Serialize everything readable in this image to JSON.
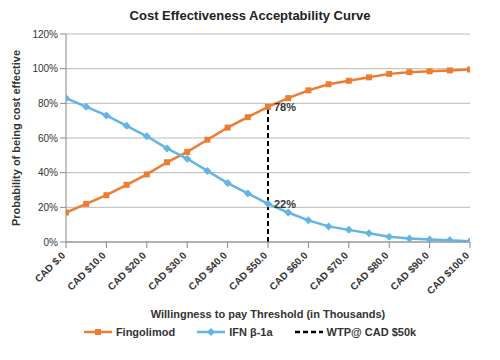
{
  "chart_data": {
    "type": "line",
    "title": "Cost Effectiveness Acceptability Curve",
    "x_label": "Willingness to pay Threshold (in Thousands)",
    "y_label": "Probability of being cost effective",
    "x": [
      0,
      5,
      10,
      15,
      20,
      25,
      30,
      35,
      40,
      45,
      50,
      55,
      60,
      65,
      70,
      75,
      80,
      85,
      90,
      95,
      100
    ],
    "xlim": [
      0,
      100
    ],
    "xticks": [
      {
        "value": 0,
        "label": "CAD $.0"
      },
      {
        "value": 10,
        "label": "CAD $10.0"
      },
      {
        "value": 20,
        "label": "CAD $20.0"
      },
      {
        "value": 30,
        "label": "CAD $30.0"
      },
      {
        "value": 40,
        "label": "CAD $40.0"
      },
      {
        "value": 50,
        "label": "CAD $50.0"
      },
      {
        "value": 60,
        "label": "CAD $60.0"
      },
      {
        "value": 70,
        "label": "CAD $70.0"
      },
      {
        "value": 80,
        "label": "CAD $80.0"
      },
      {
        "value": 90,
        "label": "CAD $90.0"
      },
      {
        "value": 100,
        "label": "CAD $100.0"
      }
    ],
    "ylim": [
      0,
      120
    ],
    "yticks": [
      {
        "value": 0,
        "label": "0%"
      },
      {
        "value": 20,
        "label": "20%"
      },
      {
        "value": 40,
        "label": "40%"
      },
      {
        "value": 60,
        "label": "60%"
      },
      {
        "value": 80,
        "label": "80%"
      },
      {
        "value": 100,
        "label": "100%"
      },
      {
        "value": 120,
        "label": "120%"
      }
    ],
    "grid": true,
    "legend": "bottom",
    "series": [
      {
        "name": "Fingolimod",
        "color": "#ED7D31",
        "marker": "square",
        "values": [
          17,
          22,
          27,
          33,
          39,
          46,
          52,
          59,
          66,
          72,
          78,
          83,
          87.5,
          91,
          93,
          95,
          97,
          98,
          98.5,
          99,
          99.5
        ]
      },
      {
        "name": "IFN β-1a",
        "color": "#62B5E5",
        "marker": "diamond",
        "values": [
          83,
          78,
          73,
          67,
          61,
          54,
          48,
          41,
          34,
          28,
          22,
          17,
          12.5,
          9,
          7,
          5,
          3,
          2,
          1.5,
          1,
          0.5
        ]
      }
    ],
    "reference_line": {
      "name": "WTP@ CAD $50k",
      "x": 50,
      "y_end": 78,
      "color": "#000000",
      "line_style": "dashed"
    },
    "annotations": [
      {
        "x": 50,
        "y": 78,
        "label": "78%"
      },
      {
        "x": 50,
        "y": 22,
        "label": "22%"
      }
    ]
  }
}
